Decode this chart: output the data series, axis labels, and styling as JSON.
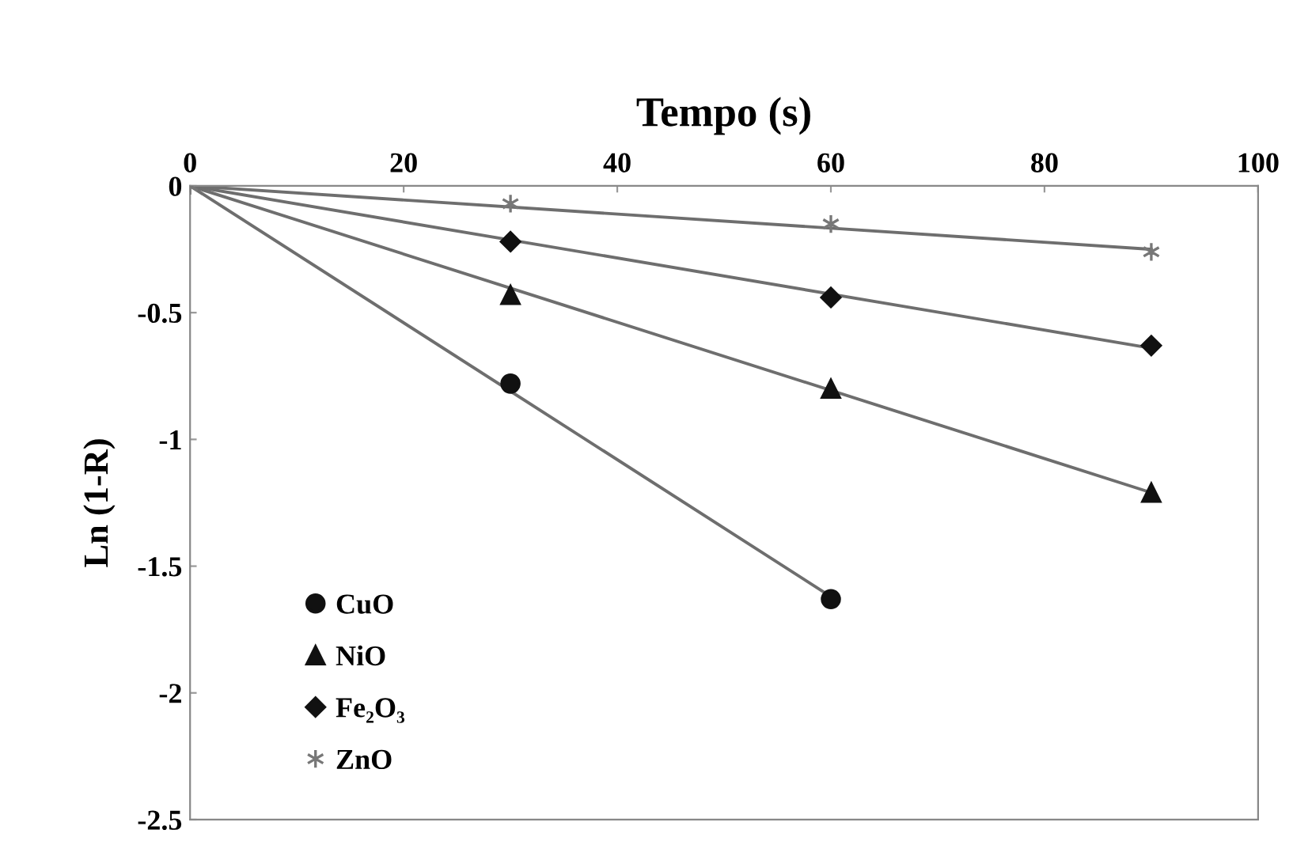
{
  "chart_data": {
    "type": "scatter",
    "xlabel": "Tempo (s)",
    "ylabel": "Ln (1-R)",
    "xlim": [
      0,
      100
    ],
    "xticks": [
      0,
      20,
      40,
      60,
      80,
      100
    ],
    "ylim": [
      -2.5,
      0
    ],
    "yticks": [
      -2.5,
      -2,
      -1.5,
      -1,
      -0.5,
      0
    ],
    "grid": false,
    "legend": "bottom left",
    "series": [
      {
        "name": "CuO",
        "marker": "circle",
        "color": "#111111",
        "x": [
          30,
          60
        ],
        "values": [
          -0.78,
          -1.63
        ]
      },
      {
        "name": "NiO",
        "marker": "triangle",
        "color": "#111111",
        "x": [
          30,
          60,
          90
        ],
        "values": [
          -0.43,
          -0.8,
          -1.21
        ]
      },
      {
        "name": "Fe₂O₃",
        "marker": "diamond",
        "color": "#111111",
        "x": [
          30,
          60,
          90
        ],
        "values": [
          -0.22,
          -0.44,
          -0.63
        ]
      },
      {
        "name": "ZnO",
        "marker": "cross",
        "color": "#777777",
        "x": [
          0,
          30,
          60,
          90
        ],
        "values": [
          0,
          -0.07,
          -0.15,
          -0.26
        ]
      },
      {
        "type": "line",
        "color": "#6e6e6e",
        "x": [
          0,
          60
        ],
        "values": [
          0,
          -1.62
        ]
      },
      {
        "type": "line",
        "color": "#6e6e6e",
        "x": [
          0,
          90
        ],
        "values": [
          0,
          -1.21
        ]
      },
      {
        "type": "line",
        "color": "#6e6e6e",
        "x": [
          0,
          90
        ],
        "values": [
          0,
          -0.64
        ]
      },
      {
        "type": "line",
        "color": "#6e6e6e",
        "x": [
          0,
          90
        ],
        "values": [
          0,
          -0.25
        ]
      }
    ]
  }
}
